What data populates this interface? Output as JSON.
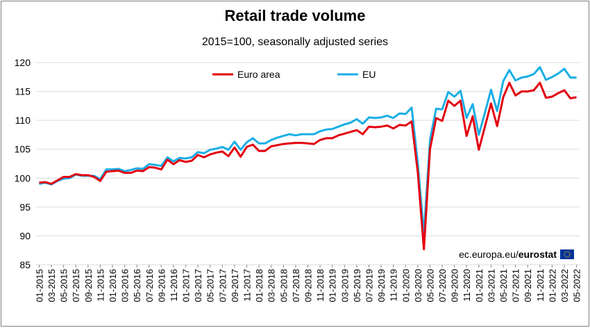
{
  "title": "Retail trade volume",
  "subtitle": "2015=100, seasonally adjusted series",
  "source_prefix": "ec.europa.eu/",
  "source_brand": "eurostat",
  "chart_data": {
    "type": "line",
    "title": "Retail trade volume",
    "subtitle": "2015=100, seasonally adjusted series",
    "xlabel": "",
    "ylabel": "",
    "ylim": [
      85,
      120
    ],
    "yticks": [
      85,
      90,
      95,
      100,
      105,
      110,
      115,
      120
    ],
    "grid": true,
    "legend": "top-center",
    "x": [
      "01-2015",
      "02-2015",
      "03-2015",
      "04-2015",
      "05-2015",
      "06-2015",
      "07-2015",
      "08-2015",
      "09-2015",
      "10-2015",
      "11-2015",
      "12-2015",
      "01-2016",
      "02-2016",
      "03-2016",
      "04-2016",
      "05-2016",
      "06-2016",
      "07-2016",
      "08-2016",
      "09-2016",
      "10-2016",
      "11-2016",
      "12-2016",
      "01-2017",
      "02-2017",
      "03-2017",
      "04-2017",
      "05-2017",
      "06-2017",
      "07-2017",
      "08-2017",
      "09-2017",
      "10-2017",
      "11-2017",
      "12-2017",
      "01-2018",
      "02-2018",
      "03-2018",
      "04-2018",
      "05-2018",
      "06-2018",
      "07-2018",
      "08-2018",
      "09-2018",
      "10-2018",
      "11-2018",
      "12-2018",
      "01-2019",
      "02-2019",
      "03-2019",
      "04-2019",
      "05-2019",
      "06-2019",
      "07-2019",
      "08-2019",
      "09-2019",
      "10-2019",
      "11-2019",
      "12-2019",
      "01-2020",
      "02-2020",
      "03-2020",
      "04-2020",
      "05-2020",
      "06-2020",
      "07-2020",
      "08-2020",
      "09-2020",
      "10-2020",
      "11-2020",
      "12-2020",
      "01-2021",
      "02-2021",
      "03-2021",
      "04-2021",
      "05-2021",
      "06-2021",
      "07-2021",
      "08-2021",
      "09-2021",
      "10-2021",
      "11-2021",
      "12-2021",
      "01-2022",
      "02-2022",
      "03-2022",
      "04-2022",
      "05-2022"
    ],
    "xtick_labels": [
      "01-2015",
      "03-2015",
      "05-2015",
      "07-2015",
      "09-2015",
      "11-2015",
      "01-2016",
      "03-2016",
      "05-2016",
      "07-2016",
      "09-2016",
      "11-2016",
      "01-2017",
      "03-2017",
      "05-2017",
      "07-2017",
      "09-2017",
      "11-2017",
      "01-2018",
      "03-2018",
      "05-2018",
      "07-2018",
      "09-2018",
      "11-2018",
      "01-2019",
      "03-2019",
      "05-2019",
      "07-2019",
      "09-2019",
      "11-2019",
      "01-2020",
      "03-2020",
      "05-2020",
      "07-2020",
      "09-2020",
      "11-2020",
      "01-2021",
      "03-2021",
      "05-2021",
      "07-2021",
      "09-2021",
      "11-2021",
      "01-2022",
      "03-2022",
      "05-2022"
    ],
    "series": [
      {
        "name": "Euro area",
        "color": "#e3000f",
        "values": [
          99.2,
          99.3,
          99.0,
          99.6,
          100.2,
          100.2,
          100.7,
          100.5,
          100.5,
          100.2,
          99.5,
          101.1,
          101.2,
          101.3,
          100.9,
          100.9,
          101.3,
          101.2,
          101.9,
          101.8,
          101.5,
          103.2,
          102.4,
          103.1,
          102.8,
          103.0,
          104.0,
          103.6,
          104.1,
          104.4,
          104.6,
          103.8,
          105.3,
          103.7,
          105.4,
          105.8,
          104.7,
          104.7,
          105.5,
          105.7,
          105.9,
          106.0,
          106.1,
          106.1,
          106.0,
          105.9,
          106.6,
          106.9,
          106.9,
          107.4,
          107.7,
          108.0,
          108.3,
          107.6,
          108.9,
          108.8,
          108.9,
          109.1,
          108.6,
          109.2,
          109.1,
          109.8,
          101.0,
          87.7,
          105.0,
          110.4,
          109.9,
          113.4,
          112.5,
          113.4,
          107.3,
          110.7,
          104.9,
          108.9,
          112.9,
          109.0,
          114.0,
          116.5,
          114.3,
          115.0,
          115.0,
          115.2,
          116.5,
          113.9,
          114.1,
          114.7,
          115.2,
          113.8,
          114.0
        ]
      },
      {
        "name": "EU",
        "color": "#1aaee5",
        "values": [
          99.0,
          99.2,
          98.9,
          99.5,
          99.9,
          100.0,
          100.6,
          100.4,
          100.4,
          100.4,
          99.8,
          101.5,
          101.5,
          101.6,
          101.2,
          101.4,
          101.7,
          101.6,
          102.4,
          102.3,
          102.1,
          103.6,
          102.9,
          103.5,
          103.4,
          103.6,
          104.5,
          104.3,
          104.9,
          105.1,
          105.4,
          104.9,
          106.3,
          104.9,
          106.2,
          106.9,
          106.0,
          106.0,
          106.6,
          107.0,
          107.3,
          107.6,
          107.4,
          107.6,
          107.6,
          107.6,
          108.1,
          108.4,
          108.5,
          108.9,
          109.3,
          109.6,
          110.2,
          109.4,
          110.5,
          110.4,
          110.5,
          110.8,
          110.4,
          111.2,
          111.1,
          112.2,
          102.6,
          90.4,
          106.6,
          112.0,
          111.9,
          114.9,
          114.1,
          115.1,
          110.4,
          112.8,
          107.5,
          111.3,
          115.3,
          111.6,
          116.8,
          118.7,
          116.9,
          117.4,
          117.6,
          118.0,
          119.2,
          117.0,
          117.5,
          118.1,
          118.9,
          117.4,
          117.4
        ]
      }
    ]
  }
}
